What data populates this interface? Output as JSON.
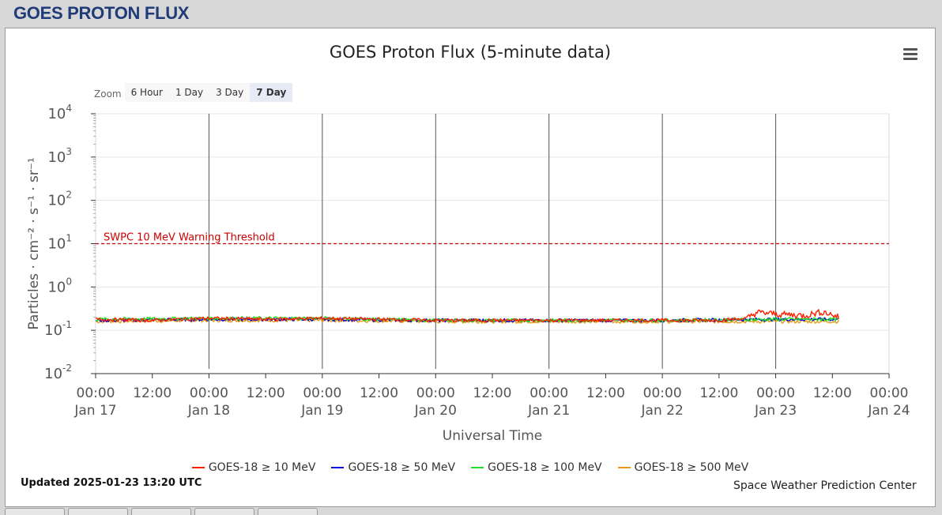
{
  "header": {
    "title": "GOES PROTON FLUX"
  },
  "chart": {
    "title": "GOES Proton Flux (5-minute data)",
    "zoom_label": "Zoom",
    "zoom_buttons": [
      "6 Hour",
      "1 Day",
      "3 Day",
      "7 Day"
    ],
    "zoom_active": "7 Day",
    "updated": "Updated 2025-01-23 13:20 UTC",
    "credit": "Space Weather Prediction Center",
    "threshold_label": "SWPC 10 MeV Warning Threshold",
    "legend": [
      {
        "label": "GOES-18 ≥ 10 MeV",
        "color": "#ff2000"
      },
      {
        "label": "GOES-18 ≥ 50 MeV",
        "color": "#0000dd"
      },
      {
        "label": "GOES-18 ≥ 100 MeV",
        "color": "#22dd22"
      },
      {
        "label": "GOES-18 ≥ 500 MeV",
        "color": "#e89a1a"
      }
    ]
  },
  "chart_data": {
    "type": "line",
    "title": "GOES Proton Flux (5-minute data)",
    "xlabel": "Universal Time",
    "ylabel": "Particles · cm⁻² · s⁻¹ · sr⁻¹",
    "y_scale": "log",
    "ylim": [
      0.01,
      10000
    ],
    "xlim": [
      "2025-01-17 00:00",
      "2025-01-24 00:00"
    ],
    "y_ticks": [
      {
        "base": "10",
        "exp": "-2"
      },
      {
        "base": "10",
        "exp": "-1"
      },
      {
        "base": "10",
        "exp": "0"
      },
      {
        "base": "10",
        "exp": "1"
      },
      {
        "base": "10",
        "exp": "2"
      },
      {
        "base": "10",
        "exp": "3"
      },
      {
        "base": "10",
        "exp": "4"
      }
    ],
    "x_ticks": [
      {
        "time": "00:00",
        "date": "Jan 17"
      },
      {
        "time": "12:00",
        "date": ""
      },
      {
        "time": "00:00",
        "date": "Jan 18"
      },
      {
        "time": "12:00",
        "date": ""
      },
      {
        "time": "00:00",
        "date": "Jan 19"
      },
      {
        "time": "12:00",
        "date": ""
      },
      {
        "time": "00:00",
        "date": "Jan 20"
      },
      {
        "time": "12:00",
        "date": ""
      },
      {
        "time": "00:00",
        "date": "Jan 21"
      },
      {
        "time": "12:00",
        "date": ""
      },
      {
        "time": "00:00",
        "date": "Jan 22"
      },
      {
        "time": "12:00",
        "date": ""
      },
      {
        "time": "00:00",
        "date": "Jan 23"
      },
      {
        "time": "12:00",
        "date": ""
      },
      {
        "time": "00:00",
        "date": "Jan 24"
      }
    ],
    "threshold": {
      "value": 10,
      "label": "SWPC 10 MeV Warning Threshold",
      "color": "#cc0000"
    },
    "day_lines": [
      "2025-01-18 00:00",
      "2025-01-19 00:00",
      "2025-01-20 00:00",
      "2025-01-21 00:00",
      "2025-01-22 00:00",
      "2025-01-23 00:00"
    ],
    "series": [
      {
        "name": "GOES-18 ≥ 10 MeV",
        "color": "#ff2000",
        "x": [
          "2025-01-17 00:00",
          "2025-01-17 12:00",
          "2025-01-18 00:00",
          "2025-01-18 12:00",
          "2025-01-19 00:00",
          "2025-01-19 12:00",
          "2025-01-20 00:00",
          "2025-01-20 12:00",
          "2025-01-21 00:00",
          "2025-01-21 12:00",
          "2025-01-22 00:00",
          "2025-01-22 12:00",
          "2025-01-22 18:00",
          "2025-01-22 20:00",
          "2025-01-23 00:00",
          "2025-01-23 06:00",
          "2025-01-23 10:00",
          "2025-01-23 13:20"
        ],
        "values": [
          0.18,
          0.17,
          0.19,
          0.18,
          0.19,
          0.18,
          0.17,
          0.17,
          0.17,
          0.17,
          0.17,
          0.17,
          0.19,
          0.26,
          0.24,
          0.22,
          0.27,
          0.2
        ]
      },
      {
        "name": "GOES-18 ≥ 50 MeV",
        "color": "#0000dd",
        "x": [
          "2025-01-17 00:00",
          "2025-01-18 00:00",
          "2025-01-19 00:00",
          "2025-01-20 00:00",
          "2025-01-21 00:00",
          "2025-01-22 00:00",
          "2025-01-23 00:00",
          "2025-01-23 13:20"
        ],
        "values": [
          0.17,
          0.18,
          0.18,
          0.17,
          0.17,
          0.17,
          0.18,
          0.18
        ]
      },
      {
        "name": "GOES-18 ≥ 100 MeV",
        "color": "#22dd22",
        "x": [
          "2025-01-17 00:00",
          "2025-01-18 00:00",
          "2025-01-19 00:00",
          "2025-01-20 00:00",
          "2025-01-21 00:00",
          "2025-01-22 00:00",
          "2025-01-23 00:00",
          "2025-01-23 13:20"
        ],
        "values": [
          0.18,
          0.19,
          0.19,
          0.17,
          0.17,
          0.17,
          0.18,
          0.18
        ]
      },
      {
        "name": "GOES-18 ≥ 500 MeV",
        "color": "#e89a1a",
        "x": [
          "2025-01-17 00:00",
          "2025-01-18 00:00",
          "2025-01-19 00:00",
          "2025-01-20 00:00",
          "2025-01-21 00:00",
          "2025-01-22 00:00",
          "2025-01-23 00:00",
          "2025-01-23 13:20"
        ],
        "values": [
          0.16,
          0.17,
          0.17,
          0.16,
          0.16,
          0.16,
          0.16,
          0.16
        ]
      }
    ]
  }
}
